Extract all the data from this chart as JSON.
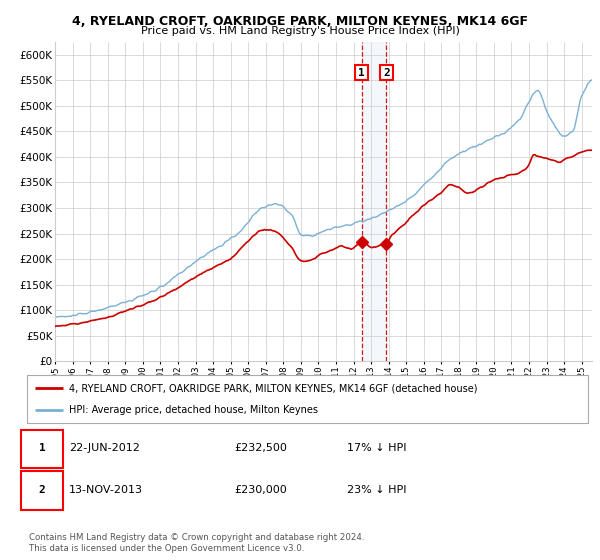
{
  "title_line1": "4, RYELAND CROFT, OAKRIDGE PARK, MILTON KEYNES, MK14 6GF",
  "title_line2": "Price paid vs. HM Land Registry's House Price Index (HPI)",
  "yticks": [
    0,
    50000,
    100000,
    150000,
    200000,
    250000,
    300000,
    350000,
    400000,
    450000,
    500000,
    550000,
    600000
  ],
  "ylim": [
    0,
    625000
  ],
  "sale1_year": 2012.46,
  "sale2_year": 2013.87,
  "sale1_price": 232500,
  "sale2_price": 230000,
  "legend_property": "4, RYELAND CROFT, OAKRIDGE PARK, MILTON KEYNES, MK14 6GF (detached house)",
  "legend_hpi": "HPI: Average price, detached house, Milton Keynes",
  "property_line_color": "#cc0000",
  "hpi_line_color": "#7ab0d4",
  "grid_color": "#cccccc",
  "vline_color": "#cc0000",
  "footnote": "Contains HM Land Registry data © Crown copyright and database right 2024.\nThis data is licensed under the Open Government Licence v3.0."
}
